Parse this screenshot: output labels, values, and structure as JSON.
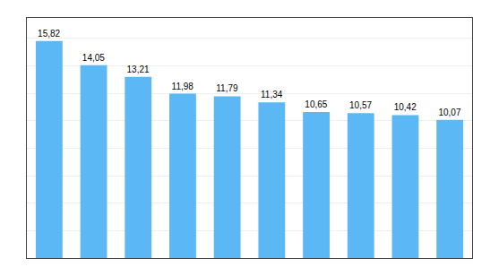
{
  "chart_data": {
    "type": "bar",
    "categories": [
      null,
      null,
      null,
      null,
      null,
      null,
      null,
      null,
      null,
      null
    ],
    "values": [
      15.82,
      14.05,
      13.21,
      11.98,
      11.79,
      11.34,
      10.65,
      10.57,
      10.42,
      10.07
    ],
    "value_labels": [
      "15,82",
      "14,05",
      "13,21",
      "11,98",
      "11,79",
      "11,34",
      "10,65",
      "10,57",
      "10,42",
      "10,07"
    ],
    "data_labels": true,
    "color": "#5BB8F5",
    "ylim": [
      0,
      17.5
    ],
    "yticks": [
      0,
      2,
      4,
      6,
      8,
      10,
      12,
      14,
      16
    ],
    "grid": true,
    "tick_labels": false
  }
}
